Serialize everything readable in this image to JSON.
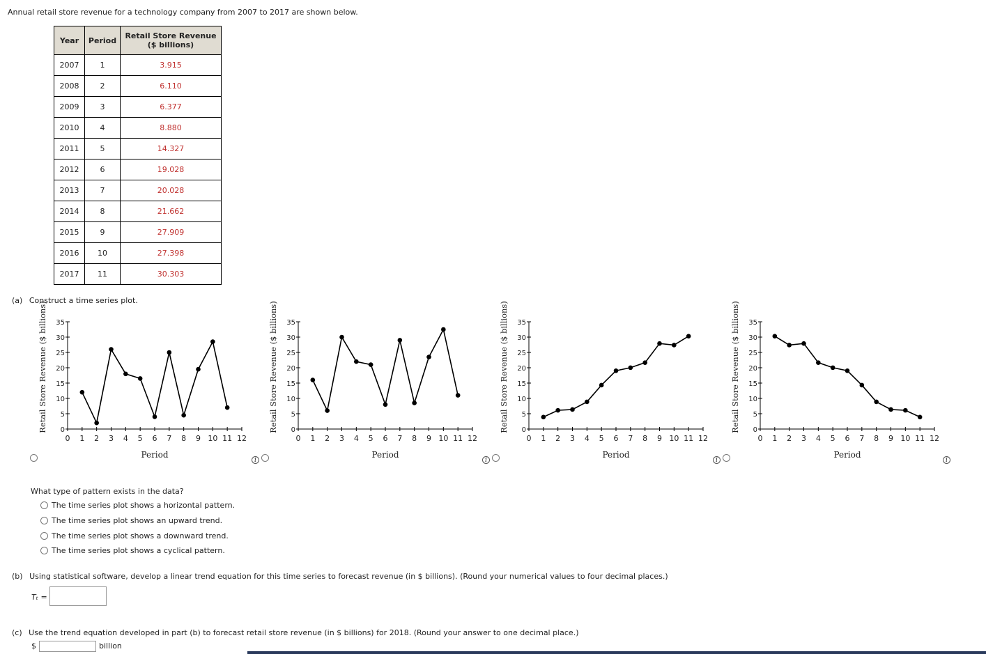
{
  "intro": "Annual retail store revenue for a technology company from 2007 to 2017 are shown below.",
  "table": {
    "headers": {
      "year": "Year",
      "period": "Period",
      "rev1": "Retail Store Revenue",
      "rev2": "($ billions)"
    },
    "rows": [
      {
        "year": "2007",
        "period": "1",
        "rev": "3.915"
      },
      {
        "year": "2008",
        "period": "2",
        "rev": "6.110"
      },
      {
        "year": "2009",
        "period": "3",
        "rev": "6.377"
      },
      {
        "year": "2010",
        "period": "4",
        "rev": "8.880"
      },
      {
        "year": "2011",
        "period": "5",
        "rev": "14.327"
      },
      {
        "year": "2012",
        "period": "6",
        "rev": "19.028"
      },
      {
        "year": "2013",
        "period": "7",
        "rev": "20.028"
      },
      {
        "year": "2014",
        "period": "8",
        "rev": "21.662"
      },
      {
        "year": "2015",
        "period": "9",
        "rev": "27.909"
      },
      {
        "year": "2016",
        "period": "10",
        "rev": "27.398"
      },
      {
        "year": "2017",
        "period": "11",
        "rev": "30.303"
      }
    ]
  },
  "part_a": {
    "label": "(a)",
    "text": "Construct a time series plot."
  },
  "colors": {
    "revenue_text": "#c0312f",
    "header_bg": "#e0dcd2",
    "bottom_bar": "#2a3a5c"
  },
  "chart_data": [
    {
      "type": "line",
      "xlabel": "Period",
      "ylabel": "Retail Store Revenue ($ billions)",
      "xlim": [
        0,
        12
      ],
      "ylim": [
        0,
        35
      ],
      "xticks": [
        "0",
        "1",
        "2",
        "3",
        "4",
        "5",
        "6",
        "7",
        "8",
        "9",
        "10",
        "11",
        "12"
      ],
      "yticks": [
        "0",
        "5",
        "10",
        "15",
        "20",
        "25",
        "30",
        "35"
      ],
      "x": [
        1,
        2,
        3,
        4,
        5,
        6,
        7,
        8,
        9,
        10,
        11
      ],
      "y": [
        12,
        2,
        26,
        18,
        16.5,
        4,
        25,
        4.5,
        19.5,
        28.5,
        7
      ]
    },
    {
      "type": "line",
      "xlabel": "Period",
      "ylabel": "Retail Store Revenue ($ billions)",
      "xlim": [
        0,
        12
      ],
      "ylim": [
        0,
        35
      ],
      "xticks": [
        "0",
        "1",
        "2",
        "3",
        "4",
        "5",
        "6",
        "7",
        "8",
        "9",
        "10",
        "11",
        "12"
      ],
      "yticks": [
        "0",
        "5",
        "10",
        "15",
        "20",
        "25",
        "30",
        "35"
      ],
      "x": [
        1,
        2,
        3,
        4,
        5,
        6,
        7,
        8,
        9,
        10,
        11
      ],
      "y": [
        16,
        6,
        30,
        22,
        21,
        8,
        29,
        8.5,
        23.5,
        32.5,
        11
      ]
    },
    {
      "type": "line",
      "xlabel": "Period",
      "ylabel": "Retail Store Revenue ($ billions)",
      "xlim": [
        0,
        12
      ],
      "ylim": [
        0,
        35
      ],
      "xticks": [
        "0",
        "1",
        "2",
        "3",
        "4",
        "5",
        "6",
        "7",
        "8",
        "9",
        "10",
        "11",
        "12"
      ],
      "yticks": [
        "0",
        "5",
        "10",
        "15",
        "20",
        "25",
        "30",
        "35"
      ],
      "x": [
        1,
        2,
        3,
        4,
        5,
        6,
        7,
        8,
        9,
        10,
        11
      ],
      "y": [
        3.915,
        6.11,
        6.377,
        8.88,
        14.327,
        19.028,
        20.028,
        21.662,
        27.909,
        27.398,
        30.303
      ]
    },
    {
      "type": "line",
      "xlabel": "Period",
      "ylabel": "Retail Store Revenue ($ billions)",
      "xlim": [
        0,
        12
      ],
      "ylim": [
        0,
        35
      ],
      "xticks": [
        "0",
        "1",
        "2",
        "3",
        "4",
        "5",
        "6",
        "7",
        "8",
        "9",
        "10",
        "11",
        "12"
      ],
      "yticks": [
        "0",
        "5",
        "10",
        "15",
        "20",
        "25",
        "30",
        "35"
      ],
      "x": [
        1,
        2,
        3,
        4,
        5,
        6,
        7,
        8,
        9,
        10,
        11
      ],
      "y": [
        30.303,
        27.398,
        27.909,
        21.662,
        20.028,
        19.028,
        14.327,
        8.88,
        6.377,
        6.11,
        3.915
      ]
    }
  ],
  "pattern": {
    "question": "What type of pattern exists in the data?",
    "options": [
      "The time series plot shows a horizontal pattern.",
      "The time series plot shows an upward trend.",
      "The time series plot shows a downward trend.",
      "The time series plot shows a cyclical pattern."
    ]
  },
  "part_b": {
    "label": "(b)",
    "text": "Using statistical software, develop a linear trend equation for this time series to forecast revenue (in $ billions). (Round your numerical values to four decimal places.)",
    "tt_label": "Tₜ =",
    "input_value": ""
  },
  "part_c": {
    "label": "(c)",
    "text": "Use the trend equation developed in part (b) to forecast retail store revenue (in $ billions) for 2018. (Round your answer to one decimal place.)",
    "currency": "$",
    "unit": "billion",
    "input_value": ""
  },
  "info_icon_glyph": "i"
}
